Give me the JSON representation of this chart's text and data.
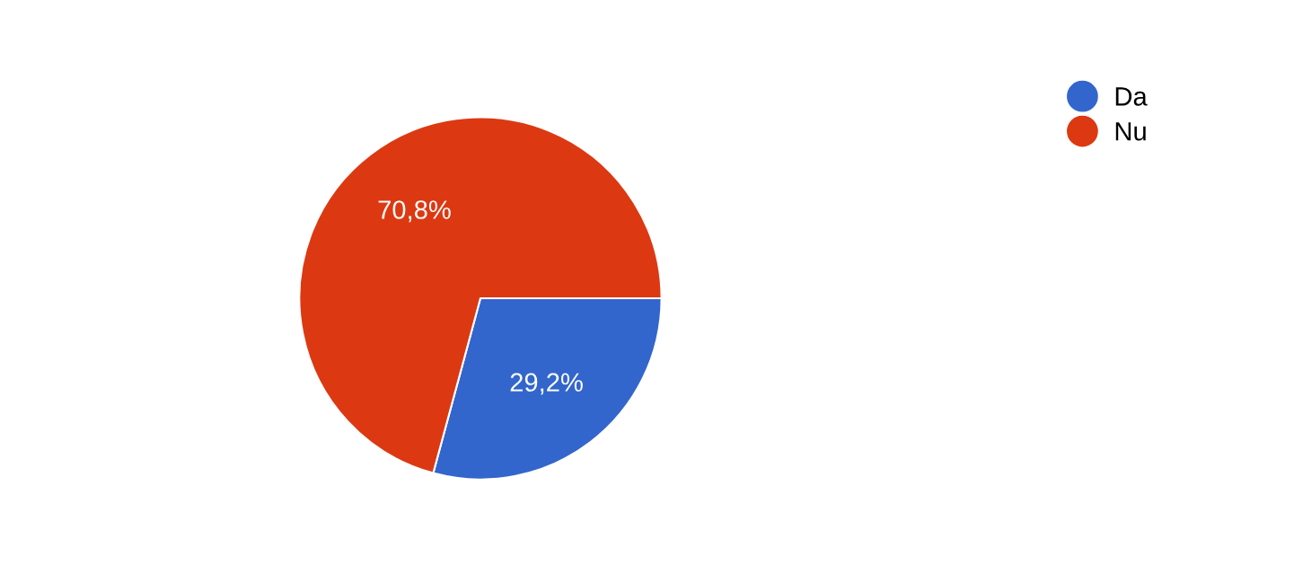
{
  "chart_data": {
    "type": "pie",
    "categories": [
      "Da",
      "Nu"
    ],
    "values": [
      29.2,
      70.8
    ],
    "colors": [
      "#3366cc",
      "#dc3912"
    ],
    "value_labels": [
      "29,2%",
      "70,8%"
    ],
    "legend": "top right"
  }
}
